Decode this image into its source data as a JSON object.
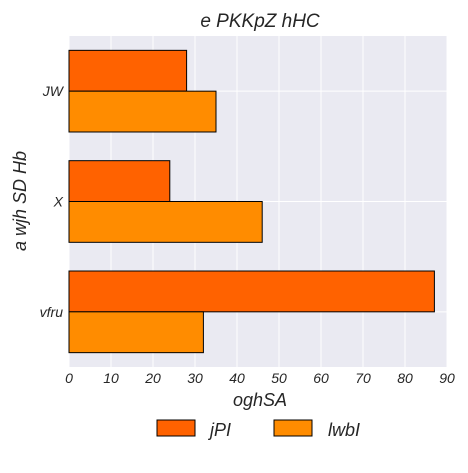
{
  "chart_data": {
    "type": "bar",
    "orientation": "horizontal",
    "title": "e PKKpZ hHC",
    "xlabel": "oghSA",
    "ylabel": "a wjh SD Hb",
    "categories": [
      "JW",
      "X",
      "vfru"
    ],
    "series": [
      {
        "name": "jPI",
        "values": [
          28,
          24,
          87
        ],
        "color": "#ff6200"
      },
      {
        "name": "lwbI",
        "values": [
          35,
          46,
          32
        ],
        "color": "#ff8c00"
      }
    ],
    "xlim": [
      0,
      90
    ],
    "xticks": [
      0,
      10,
      20,
      30,
      40,
      50,
      60,
      70,
      80,
      90
    ],
    "grid": true,
    "legend_position": "bottom-center",
    "background_color": "#eaeaf2",
    "grid_color": "#ffffff",
    "bar_edge_color": "#000000"
  }
}
